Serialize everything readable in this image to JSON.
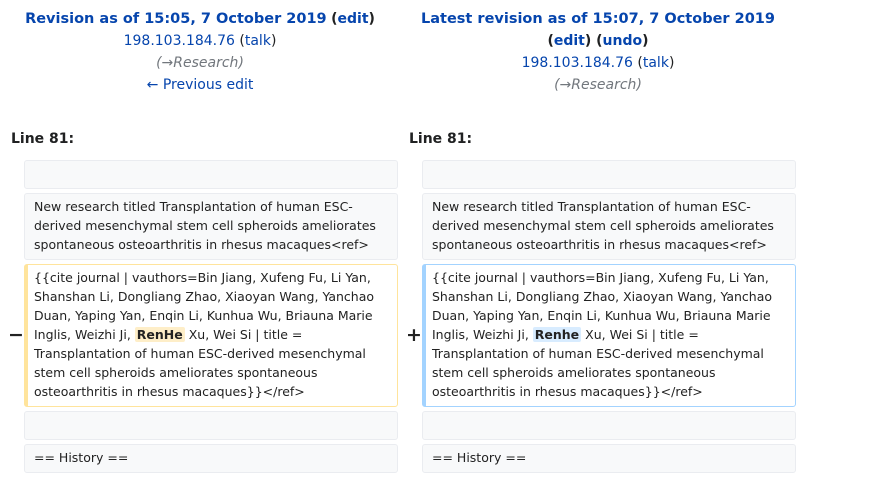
{
  "left": {
    "title": "Revision as of 15:05, 7 October 2019",
    "edit_label": "edit",
    "user": "198.103.184.76",
    "talk_label": "talk",
    "summary": "Research",
    "prev_edit": "← Previous edit",
    "line": "Line 81:",
    "context_text": "New research titled Transplantation of human ESC-derived mesenchymal stem cell spheroids ameliorates spontaneous osteoarthritis in rhesus macaques<ref>",
    "changed_before": "{{cite journal | vauthors=Bin Jiang, Xufeng Fu, Li Yan, Shanshan Li, Dongliang Zhao, Xiaoyan Wang, Yanchao Duan, Yaping Yan, Enqin Li, Kunhua Wu, Briauna Marie Inglis, Weizhi Ji, ",
    "changed_word": "RenHe",
    "changed_after": " Xu, Wei Si | title = Transplantation of human ESC-derived mesenchymal stem cell spheroids ameliorates spontaneous osteoarthritis in rhesus macaques}}</ref>",
    "history": "== History =="
  },
  "right": {
    "title": "Latest revision as of 15:07, 7 October 2019",
    "edit_label": "edit",
    "undo_label": "undo",
    "user": "198.103.184.76",
    "talk_label": "talk",
    "summary": "Research",
    "line": "Line 81:",
    "context_text": "New research titled Transplantation of human ESC-derived mesenchymal stem cell spheroids ameliorates spontaneous osteoarthritis in rhesus macaques<ref>",
    "changed_before": "{{cite journal | vauthors=Bin Jiang, Xufeng Fu, Li Yan, Shanshan Li, Dongliang Zhao, Xiaoyan Wang, Yanchao Duan, Yaping Yan, Enqin Li, Kunhua Wu, Briauna Marie Inglis, Weizhi Ji, ",
    "changed_word": "Renhe",
    "changed_after": " Xu, Wei Si | title = Transplantation of human ESC-derived mesenchymal stem cell spheroids ameliorates spontaneous osteoarthritis in rhesus macaques}}</ref>",
    "history": "== History =="
  },
  "markers": {
    "minus": "−",
    "plus": "+"
  },
  "glyphs": {
    "arrow": "→"
  }
}
